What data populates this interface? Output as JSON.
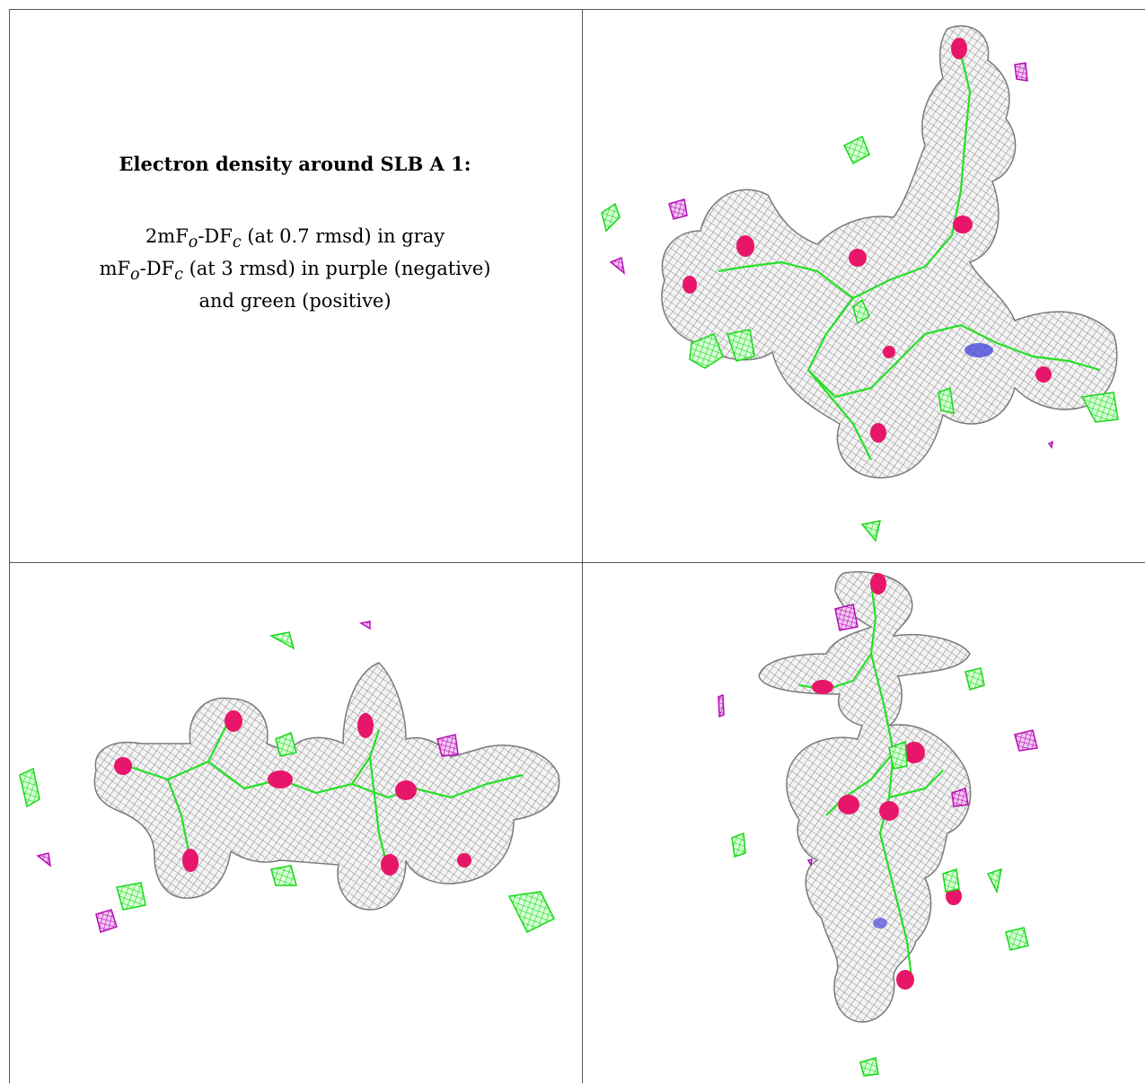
{
  "caption": {
    "title": "Electron density around SLB A 1:",
    "line1": {
      "prefix": "2mF",
      "sub1": "o",
      "mid": "-DF",
      "sub2": "c",
      "suffix": " (at 0.7 rmsd) in gray"
    },
    "line2": {
      "prefix": "mF",
      "sub1": "o",
      "mid": "-DF",
      "sub2": "c",
      "suffix": " (at 3 rmsd) in purple (negative)"
    },
    "line3": "and green (positive)"
  },
  "colors": {
    "density_mesh": "#9a9a9a",
    "oxygen": "#e8166a",
    "nitrogen": "#4a4adc",
    "positive_difference": "#22e022",
    "negative_difference": "#c21cc2",
    "grid_line": "#555555"
  },
  "panels": [
    {
      "name": "view-top-right"
    },
    {
      "name": "view-bottom-left"
    },
    {
      "name": "view-bottom-right"
    }
  ]
}
